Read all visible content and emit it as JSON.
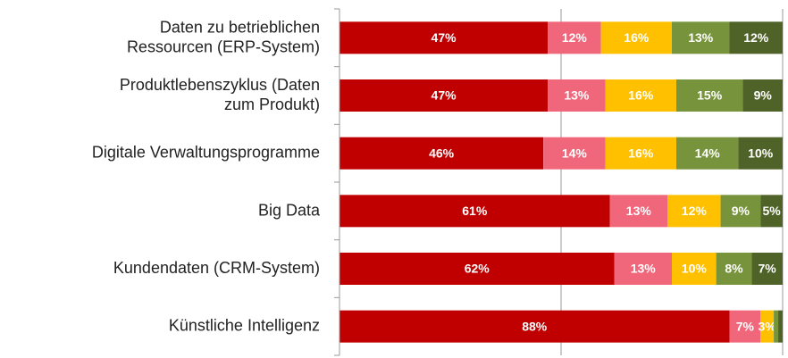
{
  "chart_data": {
    "type": "stacked-bar-horizontal",
    "categories": [
      "Daten zu betrieblichen\nRessourcen (ERP-System)",
      "Produktlebenszyklus (Daten\nzum Produkt)",
      "Digitale Verwaltungsprogramme",
      "Big Data",
      "Kundendaten (CRM-System)",
      "Künstliche Intelligenz"
    ],
    "series": [
      {
        "color": "#c00000",
        "values": [
          47,
          47,
          46,
          61,
          62,
          88
        ],
        "value_labels": [
          "47%",
          "47%",
          "46%",
          "61%",
          "62%",
          "88%"
        ]
      },
      {
        "color": "#f0677b",
        "values": [
          12,
          13,
          14,
          13,
          13,
          7
        ],
        "value_labels": [
          "12%",
          "13%",
          "14%",
          "13%",
          "13%",
          "7%"
        ]
      },
      {
        "color": "#ffc000",
        "values": [
          16,
          16,
          16,
          12,
          10,
          3
        ],
        "value_labels": [
          "16%",
          "16%",
          "16%",
          "12%",
          "10%",
          "3%"
        ]
      },
      {
        "color": "#77933c",
        "values": [
          13,
          15,
          14,
          9,
          8,
          1
        ],
        "value_labels": [
          "13%",
          "15%",
          "14%",
          "9%",
          "8%",
          null
        ]
      },
      {
        "color": "#4f6228",
        "values": [
          12,
          9,
          10,
          5,
          7,
          1
        ],
        "value_labels": [
          "12%",
          "9%",
          "10%",
          "5%",
          "7%",
          null
        ]
      }
    ],
    "xlim": [
      0,
      100
    ],
    "xticks": [
      0,
      50,
      100
    ],
    "grid": true
  }
}
